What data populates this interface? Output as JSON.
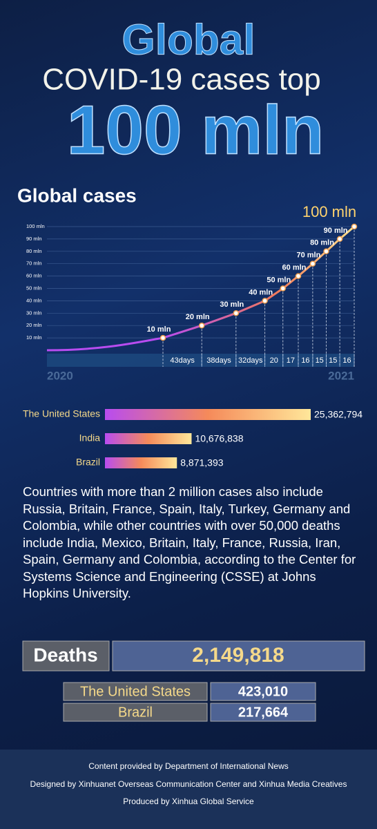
{
  "header": {
    "line1": "Global",
    "line2": "COVID-19 cases top",
    "line3": "100 mln"
  },
  "chart_data": [
    {
      "type": "line",
      "title": "Global cases",
      "values": [
        10,
        20,
        30,
        40,
        50,
        60,
        70,
        80,
        90,
        100
      ],
      "value_labels": [
        "10 mln",
        "20 mln",
        "30 mln",
        "40 mln",
        "50 mln",
        "60 mln",
        "70 mln",
        "80 mln",
        "90 mln",
        "100 mln"
      ],
      "ylim": [
        0,
        100
      ],
      "yticks": [
        {
          "value": 10,
          "label": "10 mln"
        },
        {
          "value": 20,
          "label": "20 mln"
        },
        {
          "value": 30,
          "label": "30 mln"
        },
        {
          "value": 40,
          "label": "40 mln"
        },
        {
          "value": 50,
          "label": "50 mln"
        },
        {
          "value": 60,
          "label": "60 mln"
        },
        {
          "value": 70,
          "label": "70 mln"
        },
        {
          "value": 80,
          "label": "80 mln"
        },
        {
          "value": 90,
          "label": "90 mln"
        },
        {
          "value": 100,
          "label": "100 mln"
        }
      ],
      "intervals": [
        43,
        38,
        32,
        20,
        17,
        16,
        15,
        15,
        16
      ],
      "interval_labels": [
        "43days",
        "38days",
        "32days",
        "20",
        "17",
        "16",
        "15",
        "15",
        "16"
      ],
      "x_labels": [
        "2020",
        "2021"
      ],
      "grid": true
    },
    {
      "type": "bar",
      "categories": [
        "The United States",
        "India",
        "Brazil"
      ],
      "values": [
        25362794,
        10676838,
        8871393
      ],
      "value_labels": [
        "25,362,794",
        "10,676,838",
        "8,871,393"
      ]
    }
  ],
  "text": "Countries with more than 2 million cases also include Russia, Britain, France, Spain, Italy, Turkey, Germany and Colombia, while other countries with over 50,000 deaths include India, Mexico, Britain, Italy, France, Russia, Iran, Spain, Germany and Colombia, according to the Center for Systems Science and Engineering (CSSE) at Johns Hopkins University.",
  "deaths": {
    "label": "Deaths",
    "total": "2,149,818",
    "rows": [
      [
        "The United States",
        "423,010"
      ],
      [
        "Brazil",
        "217,664"
      ]
    ]
  },
  "footer": [
    "Content provided by Department of International News",
    "Designed by Xinhuanet Overseas Communication Center and Xinhua Media Creatives",
    "Produced by Xinhua Global Service"
  ]
}
